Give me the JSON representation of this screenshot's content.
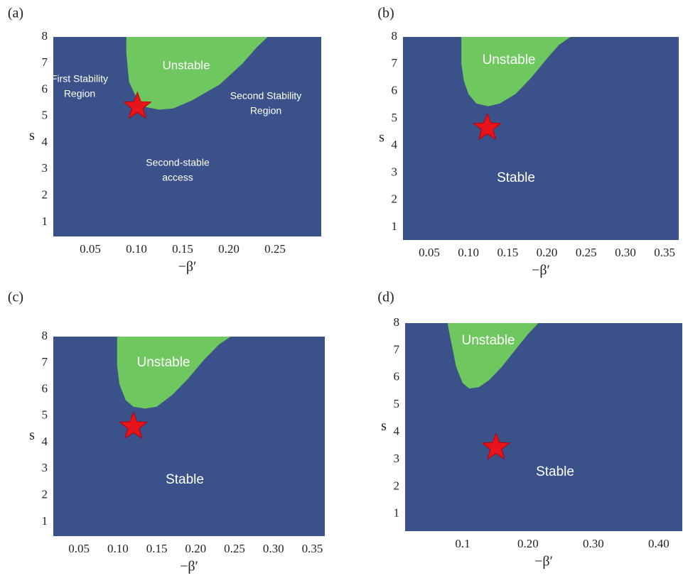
{
  "chart_data": [
    {
      "type": "region",
      "panel_label": "(a)",
      "xlabel": "−β′",
      "ylabel": "s",
      "xlim": [
        0.01,
        0.3
      ],
      "ylim": [
        0.46,
        8
      ],
      "xticks": [
        0.05,
        {
          "value": 0.1,
          "label": "0.10"
        },
        0.15,
        {
          "value": 0.2,
          "label": "0.20"
        },
        0.25
      ],
      "yticks": [
        1,
        2,
        3,
        4,
        5,
        6,
        7,
        8
      ],
      "background": "#3b5189",
      "region": {
        "color": "#6fc75f",
        "x": [
          0.089,
          0.089,
          0.092,
          0.1,
          0.11,
          0.125,
          0.14,
          0.16,
          0.19,
          0.215,
          0.23,
          0.242
        ],
        "y": [
          8,
          7.4,
          6.3,
          5.7,
          5.35,
          5.25,
          5.3,
          5.6,
          6.2,
          7.0,
          7.6,
          8
        ]
      },
      "marker": {
        "x": 0.101,
        "y": 5.37,
        "color": "#e8141c"
      },
      "annotations": [
        "Unstable",
        [
          "First Stability",
          "Region"
        ],
        [
          "Second Stability",
          "Region"
        ],
        [
          "Second-stable",
          "access"
        ]
      ]
    },
    {
      "type": "region",
      "panel_label": "(b)",
      "xlabel": "−β′",
      "ylabel": "s",
      "xlim": [
        0.0165,
        0.368
      ],
      "ylim": [
        0.53,
        8
      ],
      "xticks": [
        0.05,
        {
          "value": 0.1,
          "label": "0.10"
        },
        0.15,
        {
          "value": 0.2,
          "label": "0.20"
        },
        0.25,
        {
          "value": 0.3,
          "label": "0.30"
        },
        0.35
      ],
      "yticks": [
        1,
        2,
        3,
        4,
        5,
        6,
        7,
        8
      ],
      "background": "#3b5189",
      "region": {
        "color": "#6fc75f",
        "x": [
          0.091,
          0.091,
          0.094,
          0.1,
          0.11,
          0.125,
          0.14,
          0.16,
          0.18,
          0.2,
          0.215,
          0.23
        ],
        "y": [
          8,
          7.0,
          6.4,
          5.9,
          5.55,
          5.45,
          5.55,
          5.9,
          6.5,
          7.2,
          7.7,
          8
        ]
      },
      "marker": {
        "x": 0.124,
        "y": 4.66,
        "color": "#e8141c"
      },
      "annotations": [
        "Unstable",
        "Stable"
      ]
    },
    {
      "type": "region",
      "panel_label": "(c)",
      "xlabel": "−β′",
      "ylabel": "s",
      "xlim": [
        0.017,
        0.366
      ],
      "ylim": [
        0.46,
        8
      ],
      "xticks": [
        0.05,
        {
          "value": 0.1,
          "label": "0.10"
        },
        0.15,
        {
          "value": 0.2,
          "label": "0.20"
        },
        0.25,
        {
          "value": 0.3,
          "label": "0.30"
        },
        0.35
      ],
      "yticks": [
        1,
        2,
        3,
        4,
        5,
        6,
        7,
        8
      ],
      "background": "#3b5189",
      "region": {
        "color": "#6fc75f",
        "x": [
          0.099,
          0.099,
          0.102,
          0.11,
          0.12,
          0.135,
          0.15,
          0.17,
          0.19,
          0.21,
          0.23,
          0.245
        ],
        "y": [
          8,
          6.9,
          6.2,
          5.6,
          5.35,
          5.28,
          5.35,
          5.8,
          6.4,
          7.1,
          7.7,
          8
        ]
      },
      "marker": {
        "x": 0.12,
        "y": 4.6,
        "color": "#e8141c"
      },
      "annotations": [
        "Unstable",
        "Stable"
      ]
    },
    {
      "type": "region",
      "panel_label": "(d)",
      "xlabel": "−β′",
      "ylabel": "s",
      "xlim": [
        0.012,
        0.436
      ],
      "ylim": [
        0.37,
        8
      ],
      "xticks": [
        0.1,
        {
          "value": 0.2,
          "label": "0.20"
        },
        {
          "value": 0.3,
          "label": "0.30"
        },
        {
          "value": 0.4,
          "label": "0.40"
        }
      ],
      "yticks": [
        1,
        2,
        3,
        4,
        5,
        6,
        7,
        8
      ],
      "background": "#3b5189",
      "region": {
        "color": "#6fc75f",
        "x": [
          0.077,
          0.08,
          0.085,
          0.09,
          0.1,
          0.11,
          0.125,
          0.14,
          0.16,
          0.18,
          0.2,
          0.216
        ],
        "y": [
          8,
          7.6,
          7.0,
          6.4,
          5.8,
          5.6,
          5.65,
          5.9,
          6.4,
          7.0,
          7.6,
          8
        ]
      },
      "marker": {
        "x": 0.151,
        "y": 3.44,
        "color": "#e8141c"
      },
      "annotations": [
        "Unstable",
        "Stable"
      ]
    }
  ]
}
